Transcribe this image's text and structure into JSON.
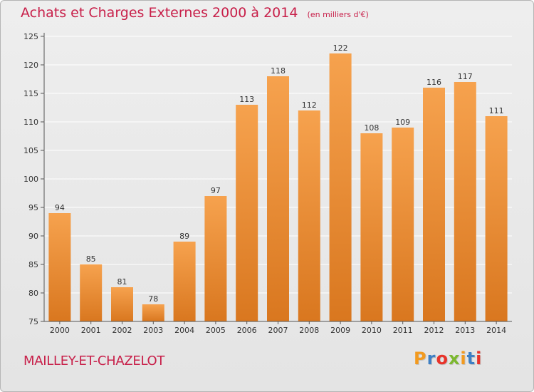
{
  "header": {
    "title": "Achats et Charges Externes 2000 à 2014",
    "unit": "(en milliers d'€)"
  },
  "footer": {
    "commune": "MAILLEY-ET-CHAZELOT",
    "brand_letters": [
      "P",
      "r",
      "o",
      "x",
      "i",
      "t",
      "i"
    ],
    "brand_colors": [
      "#f29a1f",
      "#3d7fc4",
      "#e8332a",
      "#7cb82f",
      "#f29a1f",
      "#3d7fc4",
      "#e8332a"
    ]
  },
  "colors": {
    "bar_top": "#f6a24e",
    "bar_bottom": "#d9771f",
    "title": "#c8204a",
    "grid": "#ffffff",
    "axis": "#555555"
  },
  "chart_data": {
    "type": "bar",
    "title": "Achats et Charges Externes 2000 à 2014",
    "xlabel": "",
    "ylabel": "",
    "ylim": [
      75,
      125
    ],
    "yticks": [
      75,
      80,
      85,
      90,
      95,
      100,
      105,
      110,
      115,
      120,
      125
    ],
    "grid": true,
    "categories": [
      "2000",
      "2001",
      "2002",
      "2003",
      "2004",
      "2005",
      "2006",
      "2007",
      "2008",
      "2009",
      "2010",
      "2011",
      "2012",
      "2013",
      "2014"
    ],
    "values": [
      94,
      85,
      81,
      78,
      89,
      97,
      113,
      118,
      112,
      122,
      108,
      109,
      116,
      117,
      111
    ]
  }
}
